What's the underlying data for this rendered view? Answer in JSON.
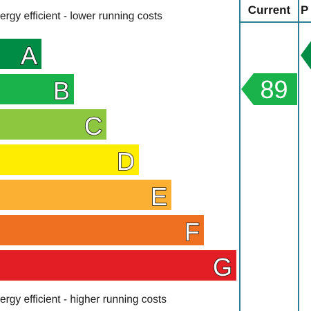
{
  "captions": {
    "top": "ergy efficient - lower running costs",
    "bottom": "ergy efficient - higher running costs"
  },
  "columns": {
    "current": "Current",
    "potential": "P"
  },
  "chart_data": {
    "type": "bar",
    "orientation": "horizontal",
    "categories": [
      "A",
      "B",
      "C",
      "D",
      "E",
      "F",
      "G"
    ],
    "band_colors": [
      "#008c44",
      "#19b24b",
      "#8dc63f",
      "#ffed00",
      "#fbb034",
      "#f07022",
      "#e31e24"
    ],
    "current": {
      "value": 89,
      "band": "B",
      "color": "#19b24b"
    },
    "potential": {
      "band": "A",
      "color": "#008c44"
    }
  }
}
